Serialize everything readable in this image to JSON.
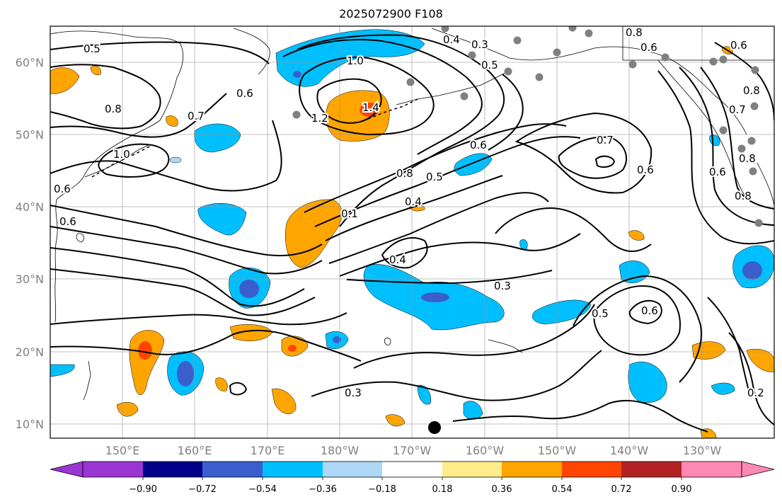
{
  "title": "2025072900 F108",
  "lat_labels": [
    "10°N",
    "20°N",
    "30°N",
    "40°N",
    "50°N",
    "60°N"
  ],
  "lon_labels": [
    "150°E",
    "160°E",
    "170°E",
    "180°W",
    "170°W",
    "160°W",
    "150°W",
    "140°W",
    "130°W"
  ],
  "contour_labels": [
    "0.5",
    "0.8",
    "1.0",
    "0.7",
    "0.6",
    "1.0",
    "1.2",
    "1.4",
    "0.4",
    "0.3",
    "0.5",
    "0.6",
    "0.8",
    "0.5",
    "0.4",
    "0.1",
    "0.7",
    "0.6",
    "0.6",
    "0.8",
    "0.8",
    "0.7",
    "0.6",
    "0.8",
    "0.8",
    "0.6",
    "0.4",
    "0.3",
    "0.5",
    "0.6",
    "0.3",
    "0.2",
    "0.6",
    "0.6"
  ],
  "colorbar": {
    "ticks": [
      "−0.90",
      "−0.72",
      "−0.54",
      "−0.36",
      "−0.18",
      "0.18",
      "0.36",
      "0.54",
      "0.72",
      "0.90"
    ],
    "colors": [
      "#9a35d4",
      "#00008b",
      "#3a5fcd",
      "#00bfff",
      "#add8f7",
      "#ffffff",
      "#ffec8b",
      "#ffa500",
      "#ff4500",
      "#b22222",
      "#ff89b4"
    ]
  }
}
